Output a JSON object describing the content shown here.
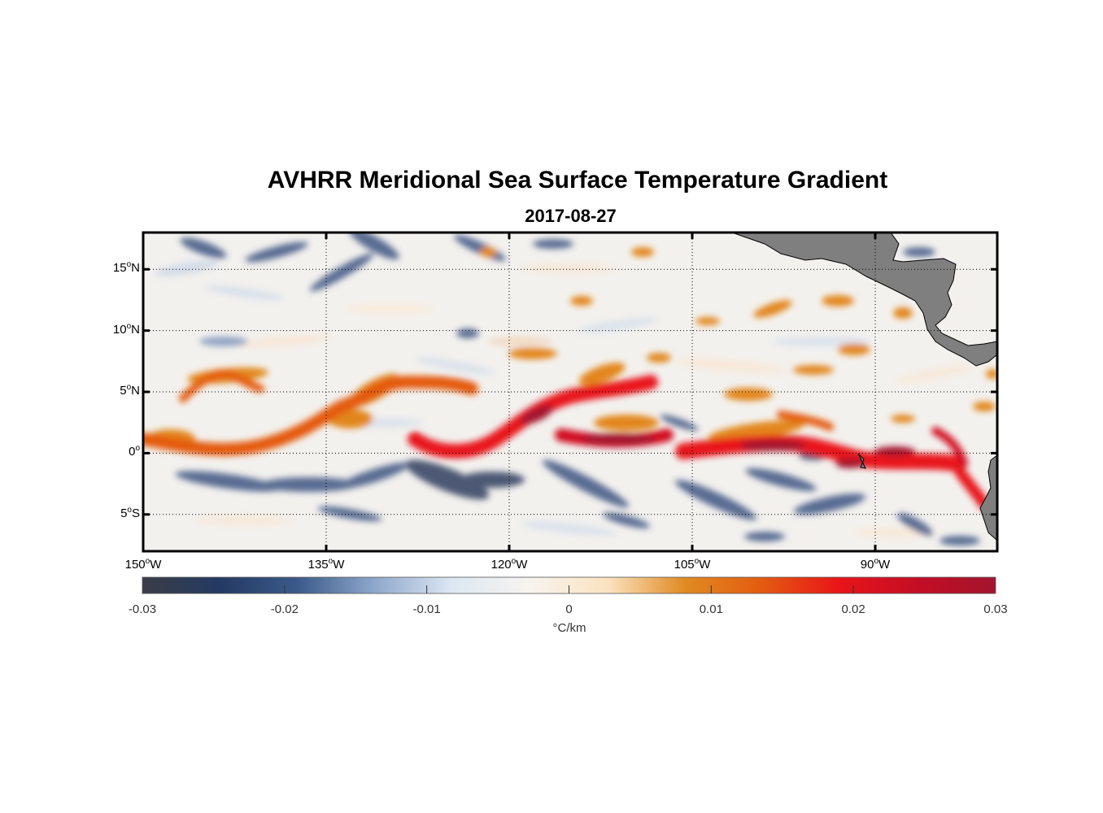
{
  "title": "AVHRR Meridional Sea Surface Temperature Gradient",
  "date": "2017-08-27",
  "lat_ticks": [
    {
      "deg": "15",
      "hem": "N",
      "lat": 15
    },
    {
      "deg": "10",
      "hem": "N",
      "lat": 10
    },
    {
      "deg": "5",
      "hem": "N",
      "lat": 5
    },
    {
      "deg": "0",
      "hem": "",
      "lat": 0
    },
    {
      "deg": "5",
      "hem": "S",
      "lat": -5
    }
  ],
  "lon_ticks": [
    {
      "deg": "150",
      "hem": "W",
      "lon": -150
    },
    {
      "deg": "135",
      "hem": "W",
      "lon": -135
    },
    {
      "deg": "120",
      "hem": "W",
      "lon": -120
    },
    {
      "deg": "105",
      "hem": "W",
      "lon": -105
    },
    {
      "deg": "90",
      "hem": "W",
      "lon": -90
    }
  ],
  "extent": {
    "lon_min": -150,
    "lon_max": -80,
    "lat_min": -8,
    "lat_max": 18
  },
  "colorbar": {
    "min": -0.03,
    "max": 0.03,
    "ticks": [
      "-0.03",
      "-0.02",
      "-0.01",
      "0",
      "0.01",
      "0.02",
      "0.03"
    ],
    "units": "°C/km",
    "colors": [
      "#3a3d46",
      "#243a63",
      "#3b5a8a",
      "#8fa8cc",
      "#dde8f3",
      "#f7f4ef",
      "#fbe2c0",
      "#e08a22",
      "#e45a10",
      "#e8141a",
      "#c30e25",
      "#a3142e"
    ]
  },
  "land_color": "#7f7f7f"
}
